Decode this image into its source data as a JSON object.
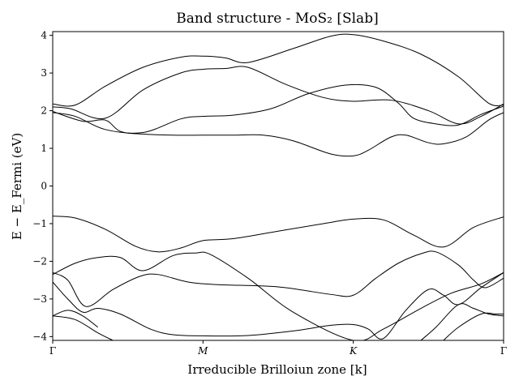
{
  "chart_data": {
    "type": "line",
    "title": "Band structure - MoS₂ [Slab]",
    "xlabel": "Irreducible Brilloiun zone [k]",
    "ylabel": "E − E_Fermi (eV)",
    "ylim": [
      -4.1,
      4.1
    ],
    "xlim": [
      0,
      3
    ],
    "x_ticks": [
      {
        "label": "Γ",
        "x": 0
      },
      {
        "label": "M",
        "x": 1
      },
      {
        "label": "K",
        "x": 2
      },
      {
        "label": "Γ",
        "x": 3
      }
    ],
    "y_ticks": [
      -4,
      -3,
      -2,
      -1,
      0,
      1,
      2,
      3,
      4
    ],
    "y_tick_labels": [
      "−4",
      "−3",
      "−2",
      "−1",
      "0",
      "1",
      "2",
      "3",
      "4"
    ],
    "grid": false,
    "series": [
      {
        "x": [
          0,
          0.15,
          0.35,
          0.6,
          0.85,
          1.0,
          1.15,
          1.3,
          1.6,
          1.85,
          2.0,
          2.2,
          2.45,
          2.7,
          2.9,
          3.0
        ],
        "values": [
          2.18,
          2.15,
          2.65,
          3.15,
          3.42,
          3.45,
          3.4,
          3.28,
          3.65,
          3.98,
          4.02,
          3.85,
          3.5,
          2.9,
          2.2,
          2.15
        ]
      },
      {
        "x": [
          0,
          0.12,
          0.35,
          0.6,
          0.85,
          1.0,
          1.15,
          1.3,
          1.55,
          1.8,
          2.0,
          2.25,
          2.5,
          2.7,
          2.85,
          3.0
        ],
        "values": [
          2.1,
          2.05,
          1.8,
          2.55,
          3.0,
          3.1,
          3.12,
          3.15,
          2.7,
          2.35,
          2.25,
          2.28,
          2.0,
          1.65,
          1.85,
          2.18
        ]
      },
      {
        "x": [
          0,
          0.15,
          0.35,
          0.6,
          0.85,
          1.0,
          1.2,
          1.45,
          1.7,
          1.95,
          2.15,
          2.3,
          2.4,
          2.55,
          2.7,
          2.85,
          3.0
        ],
        "values": [
          1.95,
          1.85,
          1.5,
          1.42,
          1.78,
          1.85,
          1.88,
          2.05,
          2.45,
          2.68,
          2.62,
          2.2,
          1.8,
          1.65,
          1.62,
          1.9,
          2.12
        ]
      },
      {
        "x": [
          0,
          0.2,
          0.35,
          0.45,
          0.6,
          0.8,
          1.0,
          1.2,
          1.4,
          1.6,
          1.85,
          2.0,
          2.1,
          2.25,
          2.35,
          2.5,
          2.6,
          2.75,
          2.9,
          3.0
        ],
        "values": [
          1.98,
          1.72,
          1.75,
          1.45,
          1.38,
          1.35,
          1.35,
          1.35,
          1.35,
          1.2,
          0.85,
          0.8,
          0.95,
          1.3,
          1.35,
          1.15,
          1.12,
          1.3,
          1.75,
          1.95
        ]
      },
      {
        "x": [
          0,
          0.15,
          0.35,
          0.55,
          0.7,
          0.85,
          1.0,
          1.2,
          1.5,
          1.8,
          2.0,
          2.2,
          2.4,
          2.6,
          2.8,
          3.0
        ],
        "values": [
          -0.8,
          -0.85,
          -1.15,
          -1.6,
          -1.75,
          -1.65,
          -1.45,
          -1.4,
          -1.2,
          -1.0,
          -0.88,
          -0.9,
          -1.3,
          -1.62,
          -1.1,
          -0.82
        ]
      },
      {
        "x": [
          0,
          0.15,
          0.3,
          0.45,
          0.6,
          0.8,
          0.95,
          1.05,
          1.3,
          1.6,
          2.0,
          2.2,
          2.45,
          2.65,
          2.85,
          3.0
        ],
        "values": [
          -2.35,
          -2.05,
          -1.9,
          -1.9,
          -2.25,
          -1.85,
          -1.78,
          -1.82,
          -2.45,
          -3.35,
          -4.1,
          -3.8,
          -3.25,
          -2.85,
          -2.6,
          -2.3
        ]
      },
      {
        "x": [
          0,
          0.1,
          0.22,
          0.4,
          0.58,
          0.7,
          0.9,
          1.1,
          1.5,
          1.85,
          2.0,
          2.15,
          2.3,
          2.45,
          2.55,
          2.7,
          2.8,
          2.88,
          3.0
        ],
        "values": [
          -2.3,
          -2.5,
          -3.2,
          -2.75,
          -2.4,
          -2.35,
          -2.55,
          -2.62,
          -2.68,
          -2.88,
          -2.9,
          -2.45,
          -2.05,
          -1.8,
          -1.75,
          -2.1,
          -2.5,
          -2.7,
          -2.45
        ]
      },
      {
        "x": [
          0,
          0.1,
          0.2,
          0.3,
          0.45,
          0.65,
          0.8,
          1.0,
          1.3,
          1.6,
          1.85,
          2.0,
          2.1,
          2.2,
          2.35,
          2.5,
          2.6,
          2.7,
          2.85,
          3.0
        ],
        "values": [
          -2.55,
          -3.0,
          -3.35,
          -3.25,
          -3.4,
          -3.8,
          -3.95,
          -3.98,
          -3.97,
          -3.85,
          -3.7,
          -3.68,
          -3.8,
          -4.05,
          -3.3,
          -2.75,
          -2.9,
          -3.15,
          -2.7,
          -2.3
        ]
      },
      {
        "x": [
          0,
          0.1,
          0.2,
          0.3
        ],
        "values": [
          -3.45,
          -3.3,
          -3.45,
          -3.75
        ]
      },
      {
        "x": [
          0,
          0.15,
          0.3,
          0.4
        ],
        "values": [
          -3.45,
          -3.55,
          -3.9,
          -4.1
        ]
      },
      {
        "x": [
          2.45,
          2.55,
          2.7,
          2.8,
          2.9,
          3.0
        ],
        "values": [
          -4.1,
          -3.75,
          -3.15,
          -3.25,
          -3.4,
          -3.45
        ]
      },
      {
        "x": [
          2.6,
          2.7,
          2.85,
          2.95,
          3.0
        ],
        "values": [
          -4.1,
          -3.75,
          -3.4,
          -3.4,
          -3.4
        ]
      }
    ]
  }
}
